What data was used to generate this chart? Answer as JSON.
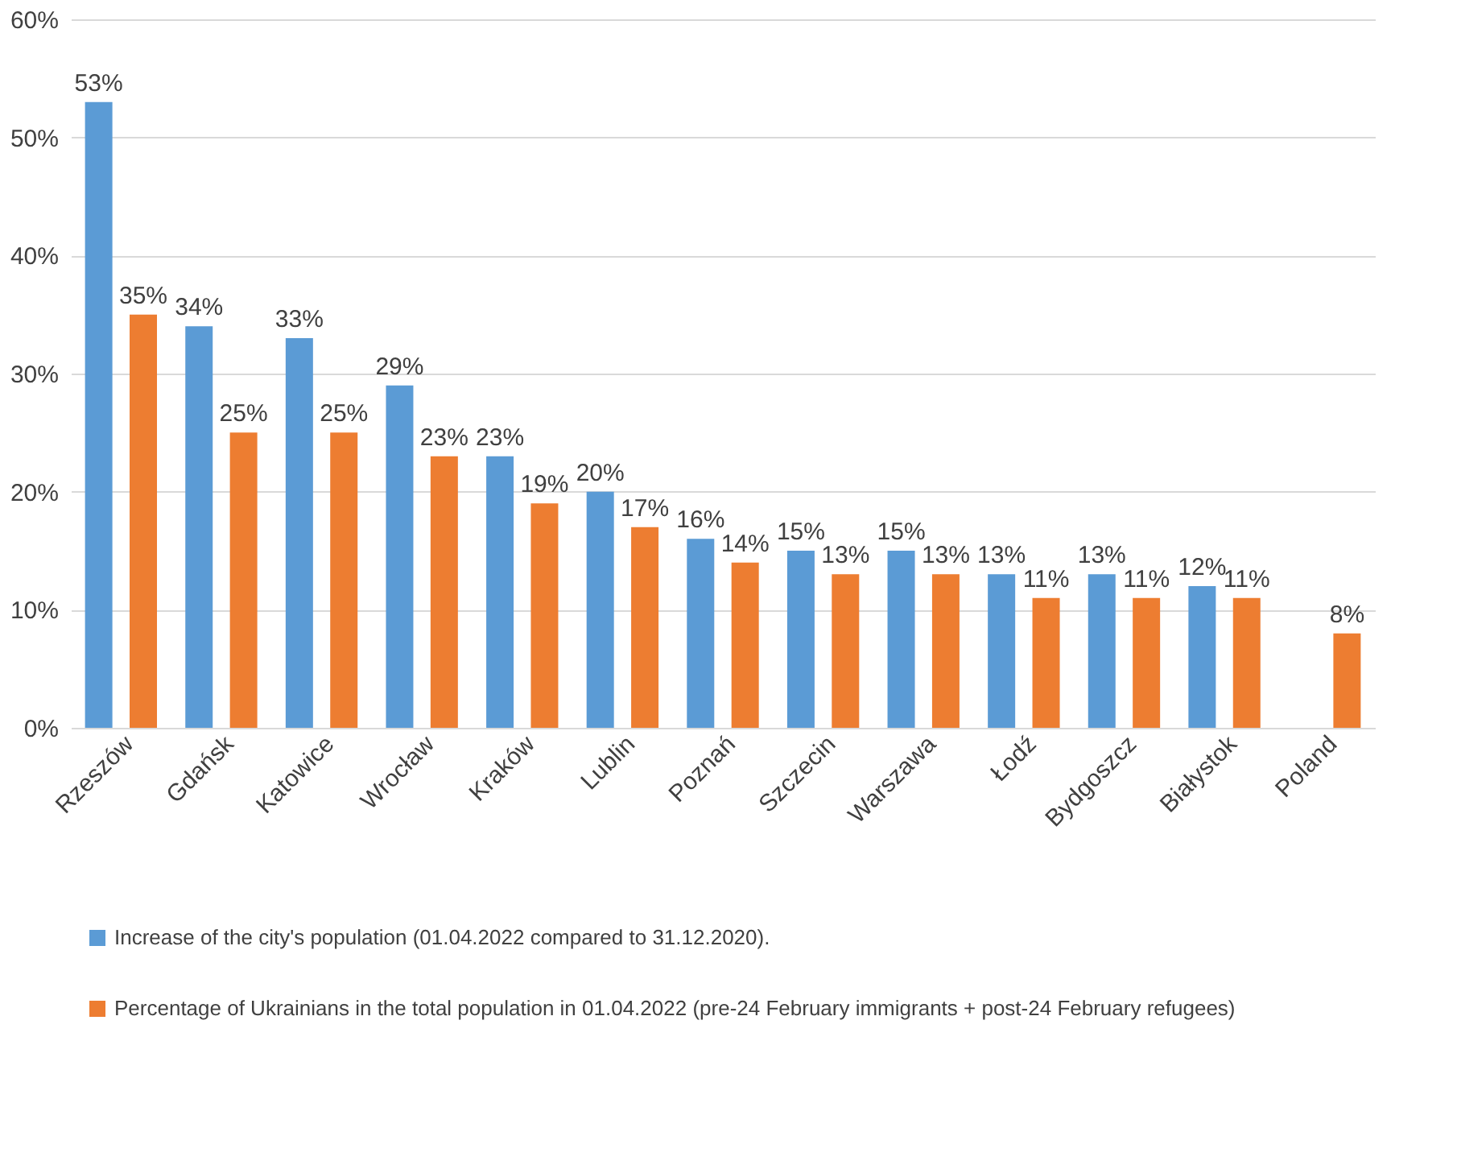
{
  "chart_data": {
    "type": "bar",
    "categories": [
      "Rzeszów",
      "Gdańsk",
      "Katowice",
      "Wrocław",
      "Kraków",
      "Lublin",
      "Poznań",
      "Szczecin",
      "Warszawa",
      "Łodź",
      "Bydgoszcz",
      "Białystok",
      "Poland"
    ],
    "series": [
      {
        "name": "Increase of the city's population (01.04.2022 compared to 31.12.2020).",
        "color": "#5b9bd5",
        "values": [
          53,
          34,
          33,
          29,
          23,
          20,
          16,
          15,
          15,
          13,
          13,
          12,
          null
        ],
        "value_labels": [
          "53%",
          "34%",
          "33%",
          "29%",
          "23%",
          "20%",
          "16%",
          "15%",
          "15%",
          "13%",
          "13%",
          "12%",
          null
        ]
      },
      {
        "name": "Percentage of Ukrainians  in the total population in 01.04.2022 (pre-24 February immigrants + post-24 February refugees)",
        "color": "#ed7d31",
        "values": [
          35,
          25,
          25,
          23,
          19,
          17,
          14,
          13,
          13,
          11,
          11,
          11,
          8
        ],
        "value_labels": [
          "35%",
          "25%",
          "25%",
          "23%",
          "19%",
          "17%",
          "14%",
          "13%",
          "13%",
          "11%",
          "11%",
          "11%",
          "8%"
        ]
      }
    ],
    "ylim": [
      0,
      60
    ],
    "yticks": [
      {
        "value": 0,
        "label": "0%"
      },
      {
        "value": 10,
        "label": "10%"
      },
      {
        "value": 20,
        "label": "20%"
      },
      {
        "value": 30,
        "label": "30%"
      },
      {
        "value": 40,
        "label": "40%"
      },
      {
        "value": 50,
        "label": "50%"
      },
      {
        "value": 60,
        "label": "60%"
      }
    ],
    "grid": "y",
    "legend": "bottom"
  }
}
